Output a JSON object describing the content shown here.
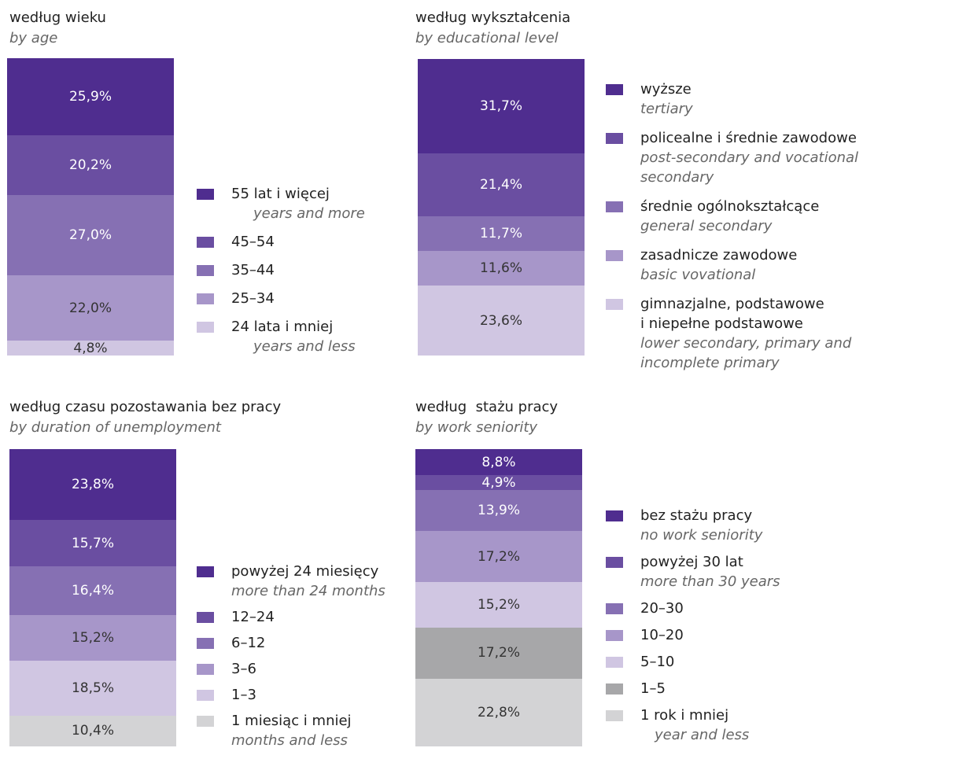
{
  "chart_data": [
    {
      "type": "bar",
      "stacked": true,
      "title": "według wieku",
      "subtitle": "by age",
      "series": [
        {
          "name": "55 lat i więcej",
          "name_en": "years and more",
          "color": "#4f2d8f",
          "values": [
            25.9
          ],
          "value_labels": [
            "25,9%"
          ]
        },
        {
          "name": "45–54",
          "color": "#6a4ea1",
          "values": [
            20.2
          ],
          "value_labels": [
            "20,2%"
          ]
        },
        {
          "name": "35–44",
          "color": "#8670b3",
          "values": [
            27.0
          ],
          "value_labels": [
            "27,0%"
          ]
        },
        {
          "name": "25–34",
          "color": "#a796c9",
          "values": [
            22.0
          ],
          "value_labels": [
            "22,0%"
          ]
        },
        {
          "name": "24 lata i mniej",
          "name_en": "years and less",
          "color": "#d0c6e2",
          "values": [
            4.8
          ],
          "value_labels": [
            "4,8%"
          ]
        }
      ]
    },
    {
      "type": "bar",
      "stacked": true,
      "title": "według wykształcenia",
      "subtitle": "by educational level",
      "series": [
        {
          "name": "wyższe",
          "name_en": "tertiary",
          "color": "#4f2d8f",
          "values": [
            31.7
          ],
          "value_labels": [
            "31,7%"
          ]
        },
        {
          "name": "policealne i średnie zawodowe",
          "name_en": "post-secondary and vocational secondary",
          "color": "#6a4ea1",
          "values": [
            21.4
          ],
          "value_labels": [
            "21,4%"
          ]
        },
        {
          "name": "średnie ogólnokształcące",
          "name_en": "general secondary",
          "color": "#8670b3",
          "values": [
            11.7
          ],
          "value_labels": [
            "11,7%"
          ]
        },
        {
          "name": "zasadnicze zawodowe",
          "name_en": "basic vovational",
          "color": "#a796c9",
          "values": [
            11.6
          ],
          "value_labels": [
            "11,6%"
          ]
        },
        {
          "name": "gimnazjalne, podstawowe\ni niepełne podstawowe",
          "name_en": "lower secondary, primary and\nincomplete primary",
          "color": "#d0c6e2",
          "values": [
            23.6
          ],
          "value_labels": [
            "23,6%"
          ]
        }
      ]
    },
    {
      "type": "bar",
      "stacked": true,
      "title": "według czasu pozostawania bez pracy",
      "subtitle": "by duration of unemployment",
      "series": [
        {
          "name": "powyżej 24 miesięcy",
          "name_en": "more than 24 months",
          "color": "#4f2d8f",
          "values": [
            23.8
          ],
          "value_labels": [
            "23,8%"
          ]
        },
        {
          "name": "12–24",
          "color": "#6a4ea1",
          "values": [
            15.7
          ],
          "value_labels": [
            "15,7%"
          ]
        },
        {
          "name": "6–12",
          "color": "#8670b3",
          "values": [
            16.4
          ],
          "value_labels": [
            "16,4%"
          ]
        },
        {
          "name": "3–6",
          "color": "#a796c9",
          "values": [
            15.2
          ],
          "value_labels": [
            "15,2%"
          ]
        },
        {
          "name": "1–3",
          "color": "#d0c6e2",
          "values": [
            18.5
          ],
          "value_labels": [
            "18,5%"
          ]
        },
        {
          "name": "1 miesiąc i mniej",
          "name_en": "months and less",
          "color": "#d3d3d5",
          "values": [
            10.4
          ],
          "value_labels": [
            "10,4%"
          ]
        }
      ]
    },
    {
      "type": "bar",
      "stacked": true,
      "title": "według  stażu pracy",
      "subtitle": "by work seniority",
      "series": [
        {
          "name": "bez stażu pracy",
          "name_en": "no work seniority",
          "color": "#4f2d8f",
          "values": [
            8.8
          ],
          "value_labels": [
            "8,8%"
          ]
        },
        {
          "name": "powyżej 30 lat",
          "name_en": "more than 30 years",
          "color": "#6a4ea1",
          "values": [
            4.9
          ],
          "value_labels": [
            "4,9%"
          ]
        },
        {
          "name": "20–30",
          "color": "#8670b3",
          "values": [
            13.9
          ],
          "value_labels": [
            "13,9%"
          ]
        },
        {
          "name": "10–20",
          "color": "#a796c9",
          "values": [
            17.2
          ],
          "value_labels": [
            "17,2%"
          ]
        },
        {
          "name": "5–10",
          "color": "#d0c6e2",
          "values": [
            15.2
          ],
          "value_labels": [
            "15,2%"
          ]
        },
        {
          "name": "1–5",
          "color": "#a7a7a9",
          "values": [
            17.2
          ],
          "value_labels": [
            "17,2%"
          ]
        },
        {
          "name": "1 rok i mniej",
          "name_en": "year and less",
          "color": "#d3d3d5",
          "values": [
            22.8
          ],
          "value_labels": [
            "22,8%"
          ]
        }
      ]
    }
  ]
}
